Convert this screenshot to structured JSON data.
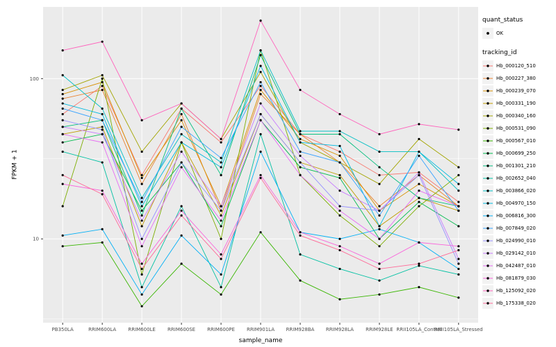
{
  "figure": {
    "background": "#FFFFFF",
    "panel_background": "#EBEBEB",
    "grid_color": "#FFFFFF",
    "point_color": "#000000",
    "tick_text_color": "#4D4D4D",
    "tick_mark_color": "#333333"
  },
  "legend": {
    "quant_status_title": "quant_status",
    "quant_status_items": [
      "OK"
    ],
    "tracking_id_title": "tracking_id"
  },
  "chart_data": {
    "type": "line",
    "title": "",
    "xlabel": "sample_name",
    "ylabel": "FPKM + 1",
    "y_scale": "log10",
    "y_ticks": [
      10,
      100
    ],
    "y_minor_ticks": [
      3.162,
      31.62
    ],
    "ylim": [
      3.0,
      280
    ],
    "grid": true,
    "legend_position": "right",
    "point_shape": "filled-circle",
    "categories": [
      "PB350LA",
      "RRIM600LA",
      "RRIM600LE",
      "RRIM600SE",
      "RRIM600PE",
      "RRIM901LA",
      "RRIM928BA",
      "RRIM928LA",
      "RRIM928LE",
      "RRII105LA_Control",
      "RRII105LA_Stressed"
    ],
    "series": [
      {
        "name": "Hb_000120_510",
        "color": "#F8766D",
        "values": [
          60,
          90,
          25,
          65,
          40,
          90,
          45,
          35,
          25,
          26,
          17
        ]
      },
      {
        "name": "Hb_000227_380",
        "color": "#EA8331",
        "values": [
          75,
          85,
          22,
          60,
          15,
          80,
          45,
          30,
          16,
          25,
          16
        ]
      },
      {
        "name": "Hb_000239_070",
        "color": "#D89000",
        "values": [
          80,
          95,
          24,
          55,
          16,
          85,
          42,
          33,
          15,
          22,
          16
        ]
      },
      {
        "name": "Hb_000331_190",
        "color": "#C09B00",
        "values": [
          45,
          50,
          12,
          40,
          14,
          60,
          30,
          25,
          12,
          18,
          15
        ]
      },
      {
        "name": "Hb_000340_160",
        "color": "#A3A500",
        "values": [
          85,
          105,
          35,
          70,
          42,
          110,
          40,
          30,
          22,
          42,
          28
        ]
      },
      {
        "name": "Hb_000531_090",
        "color": "#7CAE00",
        "values": [
          16,
          100,
          6,
          40,
          10,
          150,
          25,
          14,
          9,
          16,
          25
        ]
      },
      {
        "name": "Hb_000567_010",
        "color": "#39B600",
        "values": [
          9,
          9.5,
          3.8,
          7,
          4.5,
          11,
          5.5,
          4.2,
          4.5,
          5,
          4.3
        ]
      },
      {
        "name": "Hb_000699_250",
        "color": "#00BB4E",
        "values": [
          40,
          45,
          15,
          30,
          12,
          55,
          28,
          24,
          10,
          17,
          12
        ]
      },
      {
        "name": "Hb_001301_210",
        "color": "#00BF7D",
        "values": [
          50,
          55,
          14,
          65,
          25,
          140,
          45,
          45,
          28,
          18,
          16
        ]
      },
      {
        "name": "Hb_002652_040",
        "color": "#00C1A3",
        "values": [
          35,
          30,
          5,
          16,
          5,
          45,
          8,
          6.5,
          5.5,
          6.8,
          6
        ]
      },
      {
        "name": "Hb_003866_020",
        "color": "#00BFC4",
        "values": [
          105,
          65,
          18,
          45,
          30,
          150,
          47,
          47,
          35,
          35,
          20
        ]
      },
      {
        "name": "Hb_004970_150",
        "color": "#00BAE0",
        "values": [
          70,
          60,
          16,
          40,
          28,
          120,
          40,
          38,
          12,
          35,
          22
        ]
      },
      {
        "name": "Hb_006816_300",
        "color": "#00B0F6",
        "values": [
          10.5,
          11.5,
          4.5,
          10.5,
          6,
          35,
          11,
          10,
          11.5,
          9.5,
          6.5
        ]
      },
      {
        "name": "Hb_007849_020",
        "color": "#35A2FF",
        "values": [
          65,
          55,
          17,
          50,
          32,
          95,
          35,
          30,
          14,
          33,
          15
        ]
      },
      {
        "name": "Hb_024990_010",
        "color": "#9590FF",
        "values": [
          55,
          48,
          10,
          30,
          15,
          60,
          30,
          16,
          15,
          25,
          7
        ]
      },
      {
        "name": "Hb_029142_010",
        "color": "#C77CFF",
        "values": [
          50,
          45,
          13,
          35,
          16,
          70,
          33,
          20,
          15,
          26,
          7.5
        ]
      },
      {
        "name": "Hb_042487_010",
        "color": "#E76BF3",
        "values": [
          45,
          40,
          9,
          28,
          13,
          55,
          25,
          15,
          10,
          20,
          16
        ]
      },
      {
        "name": "Hb_081879_030",
        "color": "#FA62DB",
        "values": [
          22,
          20,
          7,
          15,
          8,
          25,
          11,
          9,
          7,
          9.5,
          9
        ]
      },
      {
        "name": "Hb_125092_020",
        "color": "#FF62BC",
        "values": [
          150,
          170,
          55,
          70,
          42,
          230,
          85,
          60,
          45,
          52,
          48
        ]
      },
      {
        "name": "Hb_175338_020",
        "color": "#FF6A98",
        "values": [
          25,
          19,
          6.5,
          14,
          7.5,
          24,
          10.5,
          8.5,
          6.5,
          7,
          8.5
        ]
      }
    ]
  }
}
